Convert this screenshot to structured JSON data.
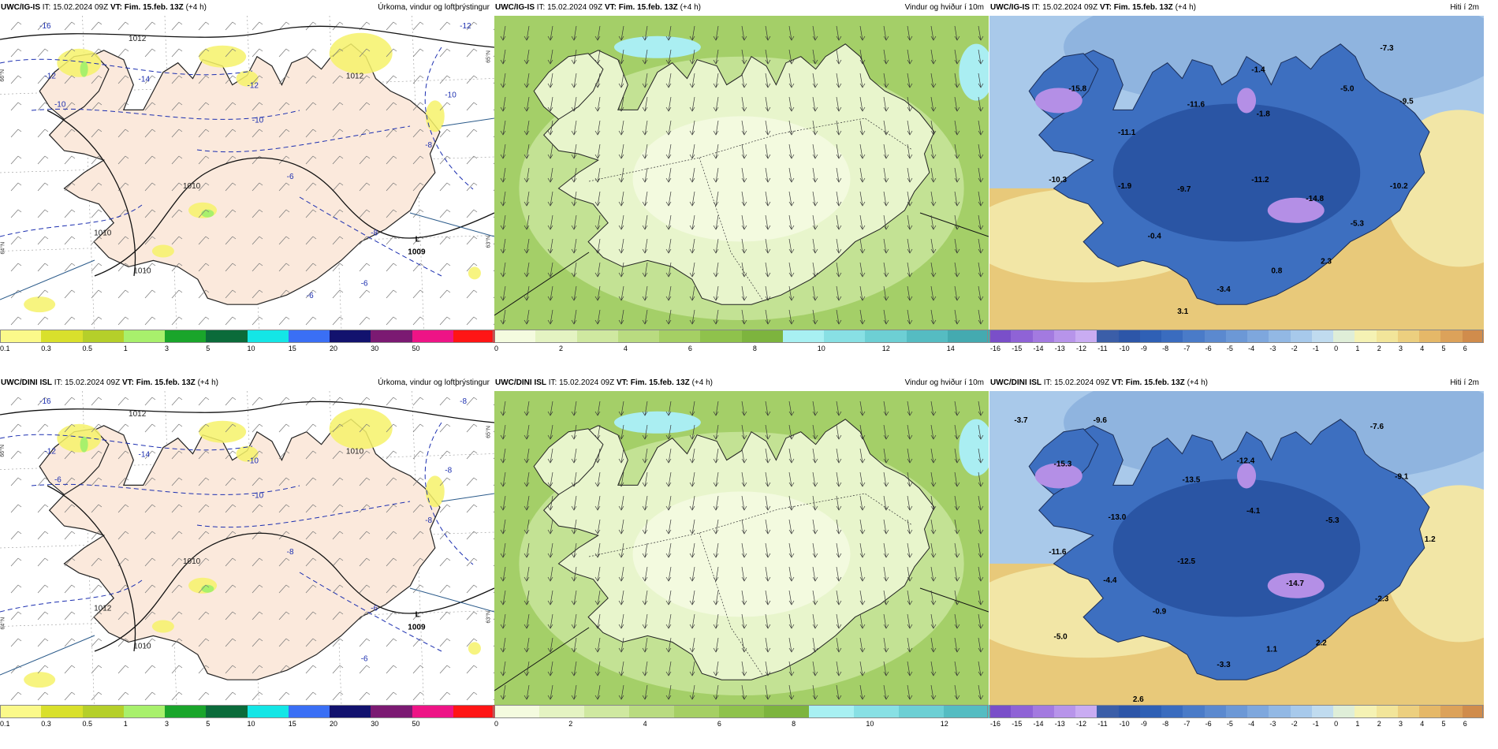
{
  "panels": [
    {
      "id": "ig-precip",
      "model": "UWC/IG-IS",
      "it_label": "IT:",
      "it_value": "15.02.2024 09Z",
      "vt_label": "VT:",
      "vt_value": "Fim. 15.feb. 13Z",
      "lead": "(+4 h)",
      "product": "Úrkoma, vindur og loftþrýstingur",
      "type": "precip",
      "colorbar": {
        "labels": [
          "0.1",
          "0.3",
          "0.5",
          "1",
          "3",
          "5",
          "10",
          "15",
          "20",
          "30",
          "50"
        ],
        "colors": [
          "#fbf98a",
          "#d9e02c",
          "#b5cf2a",
          "#a8f06c",
          "#1aa52b",
          "#0b6b3a",
          "#14e6e6",
          "#3a6ff5",
          "#12126e",
          "#7b1a72",
          "#ee1486",
          "#ff1515"
        ]
      },
      "pressure_labels": [
        "1012",
        "1010",
        "1010",
        "1012",
        "1010"
      ],
      "temp_labels": [
        "-16",
        "-12",
        "-14",
        "-12",
        "-10",
        "-10",
        "-12",
        "-8",
        "-10",
        "-6",
        "-8",
        "-6",
        "-6"
      ],
      "low_label": "L",
      "low_value": "1009",
      "lat_labels": [
        "66°N",
        "64°N",
        "65°N",
        "63°N"
      ]
    },
    {
      "id": "ig-wind",
      "model": "UWC/IG-IS",
      "it_label": "IT:",
      "it_value": "15.02.2024 09Z",
      "vt_label": "VT:",
      "vt_value": "Fim. 15.feb. 13Z",
      "lead": "(+4 h)",
      "product": "Vindur og hviður í 10m",
      "type": "wind",
      "colorbar": {
        "labels": [
          "0",
          "2",
          "4",
          "6",
          "8",
          "10",
          "12",
          "14"
        ],
        "colors": [
          "#f4fbdf",
          "#e4f3c2",
          "#cfe8a0",
          "#b9db80",
          "#a5cf64",
          "#8fc24c",
          "#7db43e",
          "#a8f0f2",
          "#88e0e4",
          "#6dcfd4",
          "#55bcc2",
          "#44aab0"
        ]
      }
    },
    {
      "id": "ig-temp",
      "model": "UWC/IG-IS",
      "it_label": "IT:",
      "it_value": "15.02.2024 09Z",
      "vt_label": "VT:",
      "vt_value": "Fim. 15.feb. 13Z",
      "lead": "(+4 h)",
      "product": "Hiti í 2m",
      "type": "temp",
      "colorbar": {
        "labels": [
          "-16",
          "-15",
          "-14",
          "-13",
          "-12",
          "-11",
          "-10",
          "-9",
          "-8",
          "-7",
          "-6",
          "-5",
          "-4",
          "-3",
          "-2",
          "-1",
          "0",
          "1",
          "2",
          "3",
          "4",
          "5",
          "6"
        ],
        "colors": [
          "#7a4fc9",
          "#8f63d6",
          "#a37ae0",
          "#b794ea",
          "#c9acf2",
          "#3b5ea8",
          "#2d56a8",
          "#2f60b5",
          "#3a6cbf",
          "#4a7bc8",
          "#5b89cf",
          "#6c98d6",
          "#7ea7dd",
          "#92b8e4",
          "#a7c9eb",
          "#c0dbef",
          "#dfeed8",
          "#f5f2b4",
          "#f2e59a",
          "#eccf7f",
          "#e5b868",
          "#dca25a",
          "#d08c4c"
        ]
      },
      "values": [
        {
          "t": "-15.8",
          "x": 0.16,
          "y": 0.24
        },
        {
          "t": "-1.4",
          "x": 0.53,
          "y": 0.18
        },
        {
          "t": "-7.3",
          "x": 0.79,
          "y": 0.11
        },
        {
          "t": "-5.0",
          "x": 0.71,
          "y": 0.24
        },
        {
          "t": "-9.5",
          "x": 0.83,
          "y": 0.28
        },
        {
          "t": "-11.6",
          "x": 0.4,
          "y": 0.29
        },
        {
          "t": "-1.8",
          "x": 0.54,
          "y": 0.32
        },
        {
          "t": "-11.1",
          "x": 0.26,
          "y": 0.38
        },
        {
          "t": "-10.3",
          "x": 0.12,
          "y": 0.53
        },
        {
          "t": "-1.9",
          "x": 0.26,
          "y": 0.55
        },
        {
          "t": "-9.7",
          "x": 0.38,
          "y": 0.56
        },
        {
          "t": "-11.2",
          "x": 0.53,
          "y": 0.53
        },
        {
          "t": "-10.2",
          "x": 0.81,
          "y": 0.55
        },
        {
          "t": "-14.8",
          "x": 0.64,
          "y": 0.59
        },
        {
          "t": "-5.3",
          "x": 0.73,
          "y": 0.67
        },
        {
          "t": "-0.4",
          "x": 0.32,
          "y": 0.71
        },
        {
          "t": "2.3",
          "x": 0.67,
          "y": 0.79
        },
        {
          "t": "0.8",
          "x": 0.57,
          "y": 0.82
        },
        {
          "t": "-3.4",
          "x": 0.46,
          "y": 0.88
        },
        {
          "t": "3.1",
          "x": 0.38,
          "y": 0.95
        }
      ]
    },
    {
      "id": "dini-precip",
      "model": "UWC/DINI ISL",
      "it_label": "IT:",
      "it_value": "15.02.2024 09Z",
      "vt_label": "VT:",
      "vt_value": "Fim. 15.feb. 13Z",
      "lead": "(+4 h)",
      "product": "Úrkoma, vindur og loftþrýstingur",
      "type": "precip",
      "colorbar": {
        "labels": [
          "0.1",
          "0.3",
          "0.5",
          "1",
          "3",
          "5",
          "10",
          "15",
          "20",
          "30",
          "50"
        ],
        "colors": [
          "#fbf98a",
          "#d9e02c",
          "#b5cf2a",
          "#a8f06c",
          "#1aa52b",
          "#0b6b3a",
          "#14e6e6",
          "#3a6ff5",
          "#12126e",
          "#7b1a72",
          "#ee1486",
          "#ff1515"
        ]
      },
      "pressure_labels": [
        "1012",
        "1012",
        "1010",
        "1010",
        "1010"
      ],
      "temp_labels": [
        "-16",
        "-12",
        "-14",
        "-10",
        "-8",
        "-10",
        "-8",
        "-8",
        "-6",
        "-8",
        "-6",
        "-6"
      ],
      "low_label": "L",
      "low_value": "1009",
      "lat_labels": [
        "66°N",
        "64°N",
        "65°N",
        "63°N"
      ]
    },
    {
      "id": "dini-wind",
      "model": "UWC/DINI ISL",
      "it_label": "IT:",
      "it_value": "15.02.2024 09Z",
      "vt_label": "VT:",
      "vt_value": "Fim. 15.feb. 13Z",
      "lead": "(+4 h)",
      "product": "Vindur og hviður í 10m",
      "type": "wind",
      "colorbar": {
        "labels": [
          "0",
          "2",
          "4",
          "6",
          "8",
          "10",
          "12"
        ],
        "colors": [
          "#f4fbdf",
          "#e4f3c2",
          "#cfe8a0",
          "#b9db80",
          "#a5cf64",
          "#8fc24c",
          "#7db43e",
          "#a8f0f2",
          "#88e0e4",
          "#6dcfd4",
          "#55bcc2"
        ]
      }
    },
    {
      "id": "dini-temp",
      "model": "UWC/DINI ISL",
      "it_label": "IT:",
      "it_value": "15.02.2024 09Z",
      "vt_label": "VT:",
      "vt_value": "Fim. 15.feb. 13Z",
      "lead": "(+4 h)",
      "product": "Hiti í 2m",
      "type": "temp",
      "colorbar": {
        "labels": [
          "-16",
          "-15",
          "-14",
          "-13",
          "-12",
          "-11",
          "-10",
          "-9",
          "-8",
          "-7",
          "-6",
          "-5",
          "-4",
          "-3",
          "-2",
          "-1",
          "0",
          "1",
          "2",
          "3",
          "4",
          "5",
          "6"
        ],
        "colors": [
          "#7a4fc9",
          "#8f63d6",
          "#a37ae0",
          "#b794ea",
          "#c9acf2",
          "#3b5ea8",
          "#2d56a8",
          "#2f60b5",
          "#3a6cbf",
          "#4a7bc8",
          "#5b89cf",
          "#6c98d6",
          "#7ea7dd",
          "#92b8e4",
          "#a7c9eb",
          "#c0dbef",
          "#dfeed8",
          "#f5f2b4",
          "#f2e59a",
          "#eccf7f",
          "#e5b868",
          "#dca25a",
          "#d08c4c"
        ]
      },
      "values": [
        {
          "t": "-3.7",
          "x": 0.05,
          "y": 0.1
        },
        {
          "t": "-9.6",
          "x": 0.21,
          "y": 0.1
        },
        {
          "t": "-7.6",
          "x": 0.77,
          "y": 0.12
        },
        {
          "t": "-15.3",
          "x": 0.13,
          "y": 0.24
        },
        {
          "t": "-12.4",
          "x": 0.5,
          "y": 0.23
        },
        {
          "t": "-13.5",
          "x": 0.39,
          "y": 0.29
        },
        {
          "t": "-9.1",
          "x": 0.82,
          "y": 0.28
        },
        {
          "t": "-13.0",
          "x": 0.24,
          "y": 0.41
        },
        {
          "t": "-4.1",
          "x": 0.52,
          "y": 0.39
        },
        {
          "t": "-5.3",
          "x": 0.68,
          "y": 0.42
        },
        {
          "t": "1.2",
          "x": 0.88,
          "y": 0.48
        },
        {
          "t": "-11.6",
          "x": 0.12,
          "y": 0.52
        },
        {
          "t": "-12.5",
          "x": 0.38,
          "y": 0.55
        },
        {
          "t": "-4.4",
          "x": 0.23,
          "y": 0.61
        },
        {
          "t": "-14.7",
          "x": 0.6,
          "y": 0.62
        },
        {
          "t": "-2.3",
          "x": 0.78,
          "y": 0.67
        },
        {
          "t": "-0.9",
          "x": 0.33,
          "y": 0.71
        },
        {
          "t": "-5.0",
          "x": 0.13,
          "y": 0.79
        },
        {
          "t": "1.1",
          "x": 0.56,
          "y": 0.83
        },
        {
          "t": "2.2",
          "x": 0.66,
          "y": 0.81
        },
        {
          "t": "-3.3",
          "x": 0.46,
          "y": 0.88
        },
        {
          "t": "2.6",
          "x": 0.29,
          "y": 0.99
        }
      ]
    }
  ]
}
